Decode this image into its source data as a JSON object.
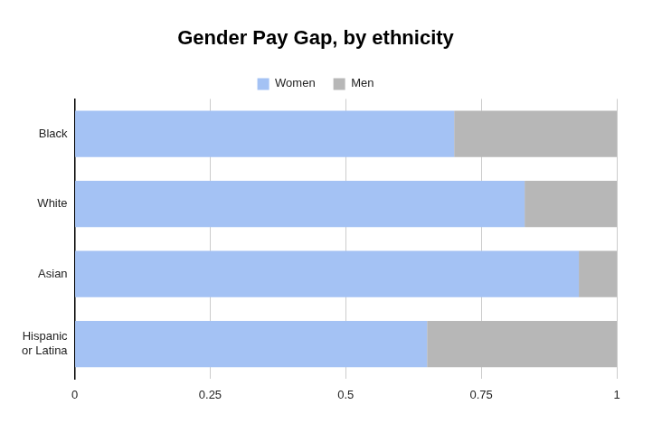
{
  "chart_data": {
    "type": "bar",
    "title": "Gender Pay Gap, by ethnicity",
    "orientation": "horizontal",
    "stacked": true,
    "categories": [
      "Black",
      "White",
      "Asian",
      "Hispanic or Latina"
    ],
    "series": [
      {
        "name": "Women",
        "color": "#a4c2f4",
        "values": [
          0.7,
          0.83,
          0.93,
          0.65
        ]
      },
      {
        "name": "Men",
        "color": "#b7b7b7",
        "values": [
          0.3,
          0.17,
          0.07,
          0.35
        ]
      }
    ],
    "xlim": [
      0,
      1
    ],
    "xticks": [
      0,
      0.25,
      0.5,
      0.75,
      1
    ],
    "grid": true,
    "legend": "top"
  }
}
